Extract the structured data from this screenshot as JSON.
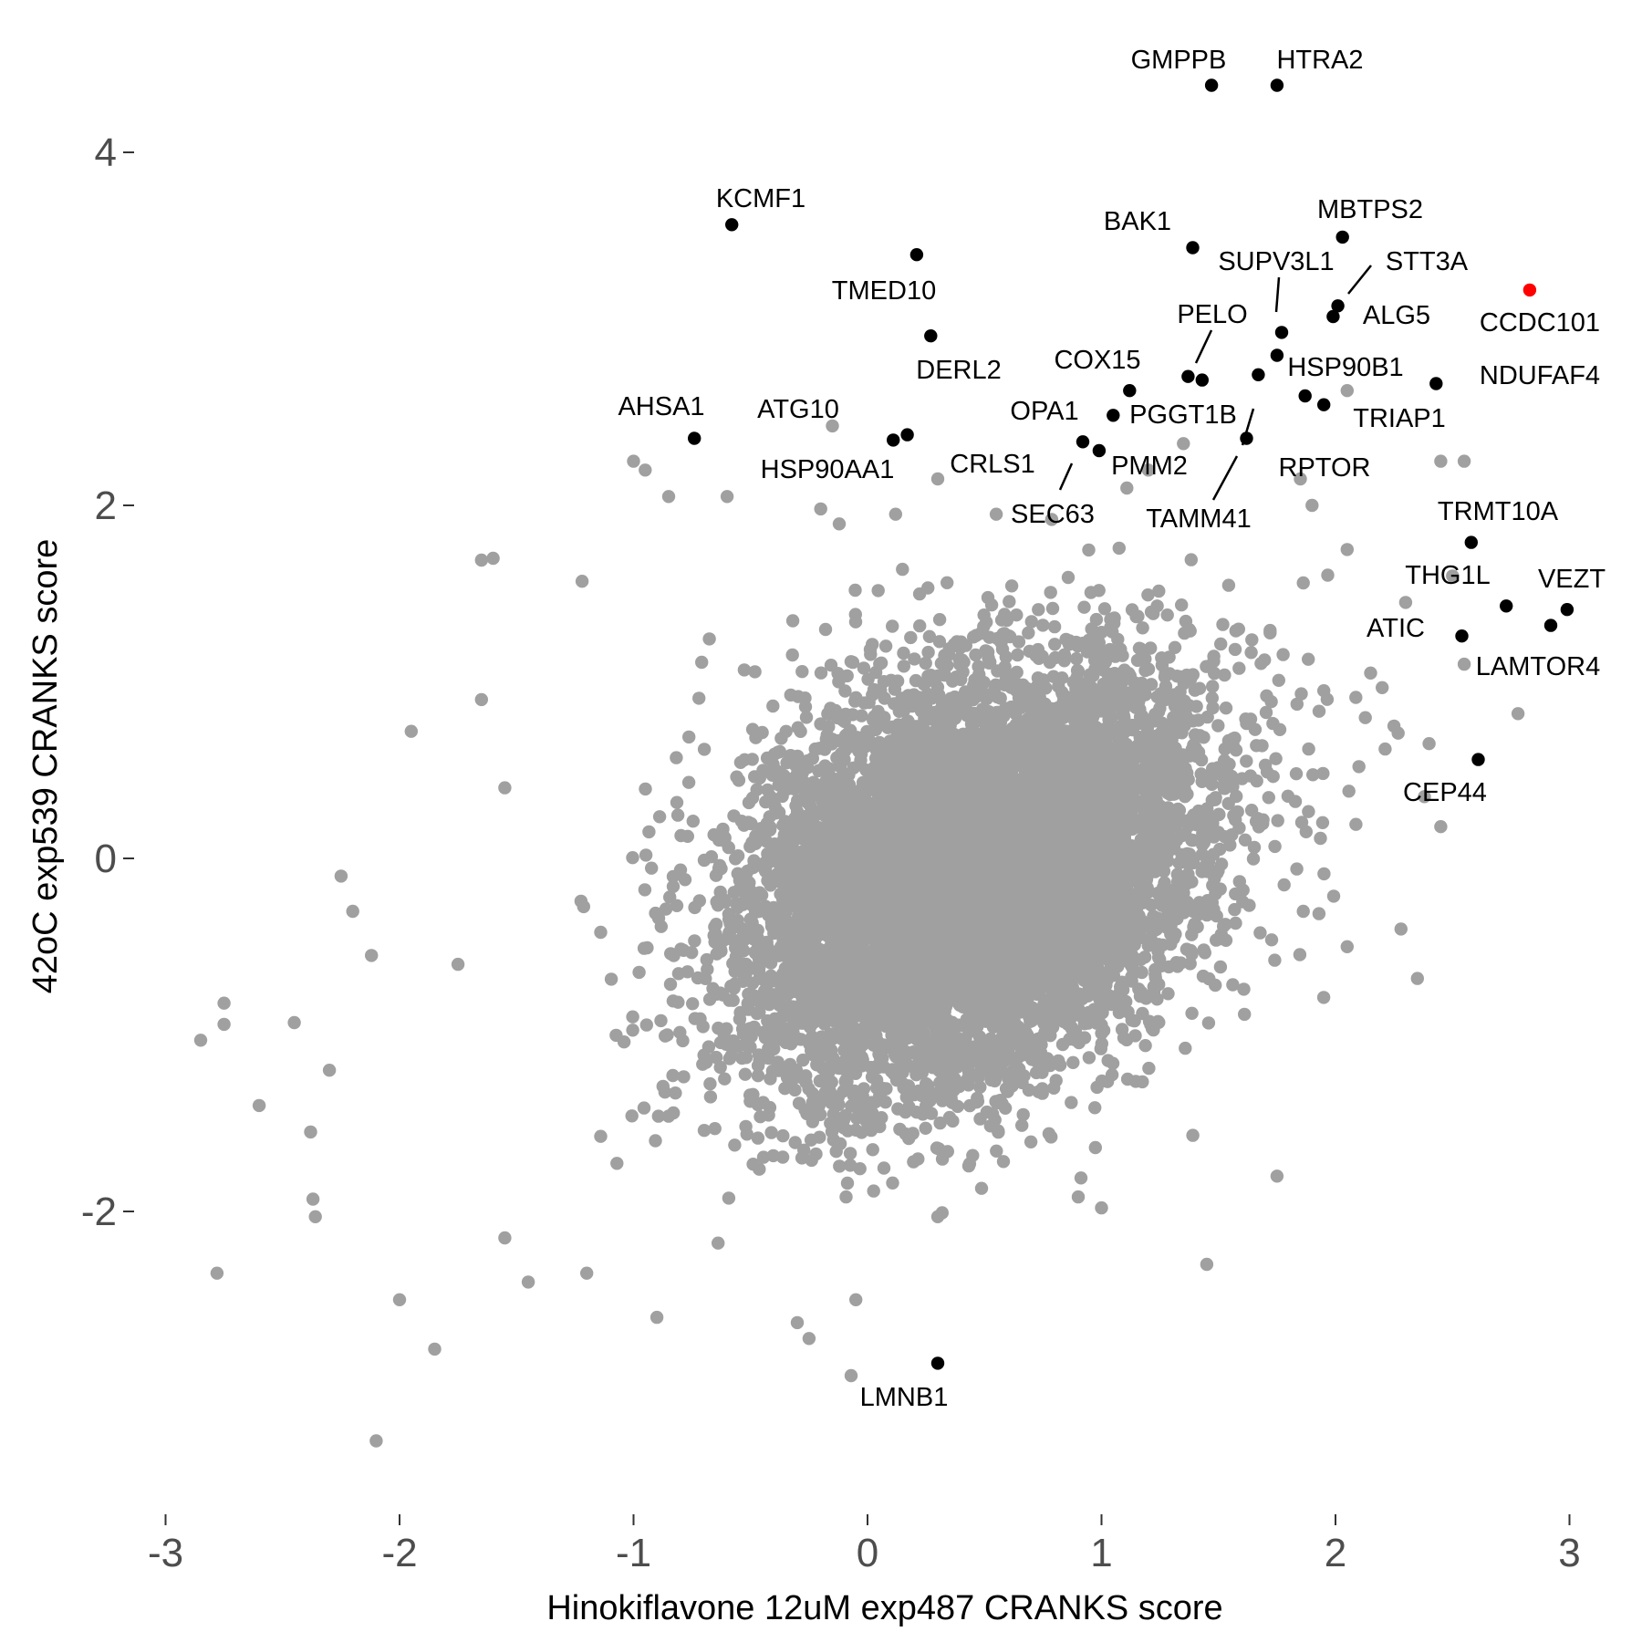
{
  "chart_data": {
    "type": "scatter",
    "xlabel": "Hinokiflavone 12uM exp487 CRANKS score",
    "ylabel": "42oC exp539 CRANKS score",
    "xlim": [
      -3.0,
      3.0
    ],
    "ylim": [
      -3.6,
      4.8
    ],
    "xticks": [
      -3,
      -2,
      -1,
      0,
      1,
      2,
      3
    ],
    "yticks": [
      -2,
      0,
      2,
      4
    ],
    "grid": false,
    "legend": "none",
    "colors": {
      "background": "#a0a0a0",
      "highlight": "#000000",
      "special": "#ff0000"
    },
    "background_points": {
      "description_role": "bulk of genes, grey",
      "approx_count": 9000,
      "x_center": 0.45,
      "y_center": -0.1,
      "x_sd": 0.48,
      "y_sd": 0.58,
      "correlation": 0.32,
      "outliers": [
        [
          -2.85,
          -1.03
        ],
        [
          -2.75,
          -0.82
        ],
        [
          -2.75,
          -0.94
        ],
        [
          -2.78,
          -2.35
        ],
        [
          -2.45,
          -0.93
        ],
        [
          -2.38,
          -1.55
        ],
        [
          -2.37,
          -1.93
        ],
        [
          -2.36,
          -2.03
        ],
        [
          -2.1,
          -3.3
        ],
        [
          -2.0,
          -2.5
        ],
        [
          -1.85,
          -2.78
        ],
        [
          -2.25,
          -0.1
        ],
        [
          -2.2,
          -0.3
        ],
        [
          -2.12,
          -0.55
        ],
        [
          -1.75,
          -0.6
        ],
        [
          -1.65,
          0.9
        ],
        [
          -1.95,
          0.72
        ],
        [
          -1.6,
          1.7
        ],
        [
          -1.65,
          1.69
        ],
        [
          -1.55,
          0.4
        ],
        [
          -1.22,
          1.57
        ],
        [
          -0.95,
          2.2
        ],
        [
          -1.0,
          2.25
        ],
        [
          -0.6,
          2.05
        ],
        [
          -0.85,
          2.05
        ],
        [
          -0.15,
          2.45
        ],
        [
          -0.2,
          1.98
        ],
        [
          0.12,
          1.95
        ],
        [
          0.3,
          2.15
        ],
        [
          0.55,
          1.95
        ],
        [
          1.2,
          2.2
        ],
        [
          1.35,
          2.35
        ],
        [
          1.85,
          2.15
        ],
        [
          1.9,
          2.0
        ],
        [
          2.05,
          2.65
        ],
        [
          2.05,
          1.75
        ],
        [
          2.45,
          2.25
        ],
        [
          2.55,
          2.25
        ],
        [
          2.5,
          1.6
        ],
        [
          2.55,
          1.1
        ],
        [
          2.4,
          0.65
        ],
        [
          2.38,
          0.35
        ],
        [
          2.45,
          0.18
        ],
        [
          2.28,
          -0.4
        ],
        [
          2.35,
          -0.68
        ],
        [
          2.05,
          -0.5
        ],
        [
          1.75,
          -1.8
        ],
        [
          1.45,
          -2.3
        ],
        [
          1.0,
          -1.98
        ],
        [
          0.3,
          -2.03
        ],
        [
          -0.05,
          -2.5
        ],
        [
          -0.07,
          -2.93
        ],
        [
          -0.25,
          -2.72
        ],
        [
          -0.3,
          -2.63
        ],
        [
          -0.9,
          -2.6
        ],
        [
          -1.2,
          -2.35
        ],
        [
          -1.45,
          -2.4
        ],
        [
          -1.55,
          -2.15
        ],
        [
          2.78,
          0.82
        ],
        [
          2.3,
          1.45
        ],
        [
          2.15,
          1.05
        ],
        [
          2.25,
          0.75
        ],
        [
          2.1,
          0.52
        ],
        [
          1.95,
          0.95
        ],
        [
          -2.6,
          -1.4
        ],
        [
          -2.3,
          -1.2
        ]
      ]
    },
    "highlighted_points": [
      {
        "gene": "GMPPB",
        "x": 1.47,
        "y": 4.38
      },
      {
        "gene": "HTRA2",
        "x": 1.75,
        "y": 4.38
      },
      {
        "gene": "KCMF1",
        "x": -0.58,
        "y": 3.59
      },
      {
        "gene": "BAK1",
        "x": 1.39,
        "y": 3.46
      },
      {
        "gene": "MBTPS2",
        "x": 2.03,
        "y": 3.52
      },
      {
        "gene": "TMED10",
        "x": 0.21,
        "y": 3.42
      },
      {
        "gene": "STT3A",
        "x": 2.01,
        "y": 3.13
      },
      {
        "gene": "ALG5",
        "x": 1.99,
        "y": 3.07
      },
      {
        "gene": "SUPV3L1",
        "x": 1.77,
        "y": 2.98
      },
      {
        "gene": "DERL2",
        "x": 0.27,
        "y": 2.96
      },
      {
        "gene": "HSP90B1",
        "x": 1.75,
        "y": 2.85
      },
      {
        "gene": "PELO",
        "x": 1.37,
        "y": 2.73
      },
      {
        "gene": "PGGT1B",
        "x": 1.43,
        "y": 2.71
      },
      {
        "gene": "NDUFAF4",
        "x": 2.43,
        "y": 2.69
      },
      {
        "gene": "TAMM41",
        "x": 1.67,
        "y": 2.74
      },
      {
        "gene": "COX15",
        "x": 1.12,
        "y": 2.65
      },
      {
        "gene": "RPTOR",
        "x": 1.87,
        "y": 2.62
      },
      {
        "gene": "TRIAP1",
        "x": 1.95,
        "y": 2.57
      },
      {
        "gene": "OPA1",
        "x": 1.05,
        "y": 2.51
      },
      {
        "gene": "AHSA1",
        "x": -0.74,
        "y": 2.38
      },
      {
        "gene": "ATG10",
        "x": 0.17,
        "y": 2.4
      },
      {
        "gene": "HSP90AA1",
        "x": 0.11,
        "y": 2.37
      },
      {
        "gene": "CRLS1",
        "x": 0.92,
        "y": 2.36
      },
      {
        "gene": "SEC63",
        "x": 0.99,
        "y": 2.31
      },
      {
        "gene": "TRMT10A",
        "x": 2.58,
        "y": 1.79
      },
      {
        "gene": "THG1L",
        "x": 2.73,
        "y": 1.43
      },
      {
        "gene": "VEZT",
        "x": 2.99,
        "y": 1.41
      },
      {
        "gene": "LAMTOR4",
        "x": 2.92,
        "y": 1.32
      },
      {
        "gene": "ATIC",
        "x": 2.54,
        "y": 1.26
      },
      {
        "gene": "CEP44",
        "x": 2.61,
        "y": 0.56
      },
      {
        "gene": "LMNB1",
        "x": 0.3,
        "y": -2.86
      },
      {
        "gene": "CCDC101",
        "x": 2.83,
        "y": 3.22,
        "color": "red"
      },
      {
        "gene": "PMM2",
        "x": 1.62,
        "y": 2.38
      }
    ],
    "labels": [
      {
        "text": "GMPPB"
      },
      {
        "text": "HTRA2"
      },
      {
        "text": "KCMF1"
      },
      {
        "text": "BAK1"
      },
      {
        "text": "MBTPS2"
      },
      {
        "text": "TMED10"
      },
      {
        "text": "SUPV3L1"
      },
      {
        "text": "STT3A"
      },
      {
        "text": "ALG5"
      },
      {
        "text": "CCDC101"
      },
      {
        "text": "PELO"
      },
      {
        "text": "DERL2"
      },
      {
        "text": "COX15"
      },
      {
        "text": "HSP90B1"
      },
      {
        "text": "NDUFAF4"
      },
      {
        "text": "AHSA1"
      },
      {
        "text": "ATG10"
      },
      {
        "text": "OPA1"
      },
      {
        "text": "PGGT1B"
      },
      {
        "text": "TRIAP1"
      },
      {
        "text": "HSP90AA1"
      },
      {
        "text": "CRLS1"
      },
      {
        "text": "PMM2"
      },
      {
        "text": "RPTOR"
      },
      {
        "text": "SEC63"
      },
      {
        "text": "TAMM41"
      },
      {
        "text": "TRMT10A"
      },
      {
        "text": "THG1L"
      },
      {
        "text": "VEZT"
      },
      {
        "text": "ATIC"
      },
      {
        "text": "LAMTOR4"
      },
      {
        "text": "CEP44"
      },
      {
        "text": "LMNB1"
      }
    ]
  }
}
